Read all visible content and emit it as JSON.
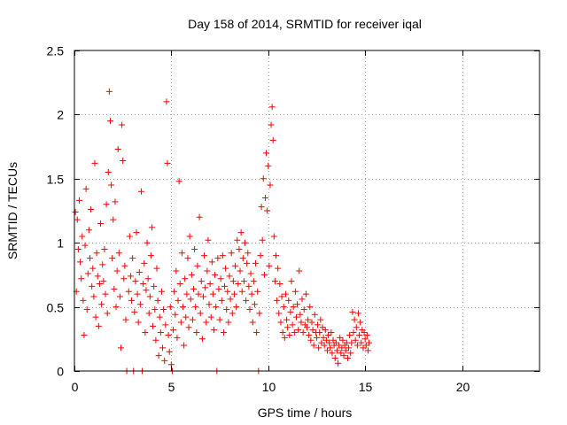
{
  "chart_data": {
    "type": "scatter",
    "title": "Day 158 of 2014, SRMTID for receiver iqal",
    "xlabel": "GPS time / hours",
    "ylabel": "SRMTID / TECUs",
    "xlim": [
      0,
      24
    ],
    "ylim": [
      0,
      2.5
    ],
    "x_ticks": [
      0,
      5,
      10,
      15,
      20
    ],
    "x_tick_labels": [
      "0",
      "5",
      "10",
      "15",
      "20"
    ],
    "y_ticks": [
      0,
      0.5,
      1,
      1.5,
      2,
      2.5
    ],
    "y_tick_labels": [
      "0",
      "0.5",
      "1",
      "1.5",
      "2",
      "2.5"
    ],
    "grid": true,
    "marker": "+",
    "series": [
      {
        "name": "SRMTID",
        "color": "#ff0000",
        "points": [
          [
            0.05,
            1.24
          ],
          [
            0.1,
            0.62
          ],
          [
            0.15,
            1.18
          ],
          [
            0.2,
            0.95
          ],
          [
            0.25,
            1.33
          ],
          [
            0.3,
            0.85
          ],
          [
            0.35,
            0.72
          ],
          [
            0.4,
            1.05
          ],
          [
            0.45,
            0.55
          ],
          [
            0.5,
            0.28
          ],
          [
            0.55,
            0.98
          ],
          [
            0.6,
            1.42
          ],
          [
            0.65,
            0.48
          ],
          [
            0.7,
            0.76
          ],
          [
            0.75,
            1.1
          ],
          [
            0.8,
            0.88
          ],
          [
            0.85,
            1.26
          ],
          [
            0.9,
            0.66
          ],
          [
            0.95,
            0.8
          ],
          [
            1.0,
            0.58
          ],
          [
            1.05,
            1.62
          ],
          [
            1.1,
            0.42
          ],
          [
            1.15,
            0.92
          ],
          [
            1.2,
            0.74
          ],
          [
            1.25,
            0.35
          ],
          [
            1.3,
            0.68
          ],
          [
            1.35,
            1.15
          ],
          [
            1.4,
            0.52
          ],
          [
            1.45,
            0.83
          ],
          [
            1.5,
            0.7
          ],
          [
            1.55,
            0.95
          ],
          [
            1.6,
            0.6
          ],
          [
            1.65,
            1.3
          ],
          [
            1.7,
            0.45
          ],
          [
            1.75,
            1.55
          ],
          [
            1.8,
            2.18
          ],
          [
            1.85,
            1.95
          ],
          [
            1.9,
            1.45
          ],
          [
            1.95,
            0.88
          ],
          [
            2.0,
            1.18
          ],
          [
            2.05,
            0.64
          ],
          [
            2.1,
            1.32
          ],
          [
            2.15,
            0.5
          ],
          [
            2.2,
            0.78
          ],
          [
            2.25,
            1.73
          ],
          [
            2.3,
            0.92
          ],
          [
            2.35,
            0.58
          ],
          [
            2.4,
            0.18
          ],
          [
            2.45,
            1.92
          ],
          [
            2.5,
            1.64
          ],
          [
            2.55,
            0.72
          ],
          [
            2.6,
            0.82
          ],
          [
            2.65,
            0.4
          ],
          [
            2.7,
            0.0
          ],
          [
            2.8,
            0.62
          ],
          [
            2.85,
            1.05
          ],
          [
            2.9,
            0.74
          ],
          [
            2.95,
            0.55
          ],
          [
            3.0,
            0.88
          ],
          [
            3.05,
            0.0
          ],
          [
            3.1,
            0.46
          ],
          [
            3.15,
            0.7
          ],
          [
            3.2,
            1.08
          ],
          [
            3.25,
            0.6
          ],
          [
            3.3,
            0.38
          ],
          [
            3.35,
            0.77
          ],
          [
            3.4,
            0.52
          ],
          [
            3.45,
            1.4
          ],
          [
            3.5,
            0.0
          ],
          [
            3.55,
            0.68
          ],
          [
            3.6,
            0.84
          ],
          [
            3.65,
            0.3
          ],
          [
            3.7,
            0.63
          ],
          [
            3.75,
            1.0
          ],
          [
            3.8,
            0.72
          ],
          [
            3.85,
            0.45
          ],
          [
            3.9,
            0.58
          ],
          [
            3.95,
            0.9
          ],
          [
            4.0,
            1.12
          ],
          [
            4.05,
            0.35
          ],
          [
            4.1,
            0.66
          ],
          [
            4.15,
            0.48
          ],
          [
            4.2,
            0.24
          ],
          [
            4.25,
            0.8
          ],
          [
            4.3,
            0.55
          ],
          [
            4.35,
            0.12
          ],
          [
            4.4,
            0.42
          ],
          [
            4.45,
            0.3
          ],
          [
            4.5,
            0.62
          ],
          [
            4.55,
            0.18
          ],
          [
            4.6,
            0.48
          ],
          [
            4.65,
            0.08
          ],
          [
            4.7,
            0.36
          ],
          [
            4.75,
            2.1
          ],
          [
            4.8,
            1.62
          ],
          [
            4.85,
            0.28
          ],
          [
            4.9,
            0.15
          ],
          [
            4.95,
            0.5
          ],
          [
            5.0,
            0.05
          ],
          [
            5.05,
            0.0
          ],
          [
            5.1,
            0.32
          ],
          [
            5.15,
            0.62
          ],
          [
            5.2,
            0.44
          ],
          [
            5.25,
            0.78
          ],
          [
            5.3,
            0.26
          ],
          [
            5.35,
            0.55
          ],
          [
            5.4,
            1.48
          ],
          [
            5.45,
            0.68
          ],
          [
            5.5,
            0.38
          ],
          [
            5.55,
            0.92
          ],
          [
            5.6,
            0.5
          ],
          [
            5.65,
            0.2
          ],
          [
            5.7,
            0.72
          ],
          [
            5.75,
            0.42
          ],
          [
            5.8,
            0.6
          ],
          [
            5.85,
            0.88
          ],
          [
            5.9,
            0.34
          ],
          [
            5.95,
            1.05
          ],
          [
            6.0,
            0.56
          ],
          [
            6.05,
            0.75
          ],
          [
            6.1,
            0.4
          ],
          [
            6.15,
            0.64
          ],
          [
            6.2,
            0.95
          ],
          [
            6.25,
            0.5
          ],
          [
            6.3,
            0.3
          ],
          [
            6.35,
            0.82
          ],
          [
            6.4,
            0.6
          ],
          [
            6.45,
            1.2
          ],
          [
            6.5,
            0.45
          ],
          [
            6.55,
            0.7
          ],
          [
            6.6,
            0.25
          ],
          [
            6.65,
            0.58
          ],
          [
            6.7,
            0.9
          ],
          [
            6.75,
            0.65
          ],
          [
            6.8,
            0.38
          ],
          [
            6.85,
            0.78
          ],
          [
            6.9,
            1.02
          ],
          [
            6.95,
            0.52
          ],
          [
            7.0,
            0.68
          ],
          [
            7.05,
            0.42
          ],
          [
            7.1,
            0.85
          ],
          [
            7.15,
            0.6
          ],
          [
            7.2,
            0.32
          ],
          [
            7.25,
            0.75
          ],
          [
            7.3,
            0.5
          ],
          [
            7.35,
            0.0
          ],
          [
            7.4,
            0.88
          ],
          [
            7.45,
            0.64
          ],
          [
            7.5,
            0.4
          ],
          [
            7.55,
            0.72
          ],
          [
            7.6,
            0.55
          ],
          [
            7.65,
            0.9
          ],
          [
            7.7,
            0.3
          ],
          [
            7.75,
            0.66
          ],
          [
            7.8,
            0.8
          ],
          [
            7.85,
            0.48
          ],
          [
            7.9,
            0.62
          ],
          [
            7.95,
            0.38
          ],
          [
            8.0,
            0.74
          ],
          [
            8.05,
            0.56
          ],
          [
            8.1,
            0.92
          ],
          [
            8.15,
            0.45
          ],
          [
            8.2,
            0.7
          ],
          [
            8.25,
            0.6
          ],
          [
            8.3,
            0.82
          ],
          [
            8.35,
            0.5
          ],
          [
            8.4,
            1.02
          ],
          [
            8.45,
            0.68
          ],
          [
            8.5,
            0.95
          ],
          [
            8.55,
            0.78
          ],
          [
            8.6,
            1.08
          ],
          [
            8.65,
            0.62
          ],
          [
            8.7,
            0.88
          ],
          [
            8.75,
            0.7
          ],
          [
            8.8,
            1.0
          ],
          [
            8.85,
            0.55
          ],
          [
            8.9,
            0.84
          ],
          [
            8.95,
            0.92
          ],
          [
            9.0,
            0.66
          ],
          [
            9.05,
            0.48
          ],
          [
            9.1,
            0.76
          ],
          [
            9.15,
            0.6
          ],
          [
            9.2,
            0.38
          ],
          [
            9.25,
            0.7
          ],
          [
            9.3,
            0.52
          ],
          [
            9.35,
            0.84
          ],
          [
            9.4,
            0.3
          ],
          [
            9.45,
            0.62
          ],
          [
            9.5,
            0.0
          ],
          [
            9.55,
            0.45
          ],
          [
            9.6,
            0.9
          ],
          [
            9.65,
            1.28
          ],
          [
            9.7,
            1.02
          ],
          [
            9.75,
            1.5
          ],
          [
            9.8,
            0.75
          ],
          [
            9.85,
            1.35
          ],
          [
            9.9,
            1.7
          ],
          [
            9.95,
            1.25
          ],
          [
            10.0,
            1.6
          ],
          [
            10.05,
            0.82
          ],
          [
            10.1,
            1.45
          ],
          [
            10.15,
            1.92
          ],
          [
            10.2,
            2.06
          ],
          [
            10.25,
            1.8
          ],
          [
            10.3,
            1.05
          ],
          [
            10.35,
            0.7
          ],
          [
            10.4,
            0.9
          ],
          [
            10.45,
            0.55
          ],
          [
            10.5,
            0.8
          ],
          [
            10.55,
            0.45
          ],
          [
            10.6,
            0.68
          ],
          [
            10.65,
            0.38
          ],
          [
            10.7,
            0.58
          ],
          [
            10.75,
            0.3
          ],
          [
            10.8,
            0.5
          ],
          [
            10.85,
            0.26
          ],
          [
            10.9,
            0.6
          ],
          [
            10.95,
            0.4
          ],
          [
            11.0,
            0.34
          ],
          [
            11.05,
            0.55
          ],
          [
            11.1,
            0.28
          ],
          [
            11.15,
            0.46
          ],
          [
            11.2,
            0.7
          ],
          [
            11.25,
            0.36
          ],
          [
            11.3,
            0.5
          ],
          [
            11.35,
            0.3
          ],
          [
            11.4,
            0.62
          ],
          [
            11.45,
            0.42
          ],
          [
            11.5,
            0.52
          ],
          [
            11.55,
            0.32
          ],
          [
            11.6,
            0.78
          ],
          [
            11.65,
            0.44
          ],
          [
            11.7,
            0.38
          ],
          [
            11.75,
            0.56
          ],
          [
            11.8,
            0.3
          ],
          [
            11.85,
            0.48
          ],
          [
            11.9,
            0.36
          ],
          [
            11.95,
            0.6
          ],
          [
            12.0,
            0.34
          ],
          [
            12.05,
            0.4
          ],
          [
            12.1,
            0.28
          ],
          [
            12.15,
            0.5
          ],
          [
            12.2,
            0.24
          ],
          [
            12.25,
            0.38
          ],
          [
            12.3,
            0.32
          ],
          [
            12.35,
            0.2
          ],
          [
            12.4,
            0.44
          ],
          [
            12.45,
            0.3
          ],
          [
            12.5,
            0.26
          ],
          [
            12.55,
            0.36
          ],
          [
            12.6,
            0.18
          ],
          [
            12.65,
            0.3
          ],
          [
            12.7,
            0.4
          ],
          [
            12.75,
            0.22
          ],
          [
            12.8,
            0.34
          ],
          [
            12.85,
            0.26
          ],
          [
            12.9,
            0.2
          ],
          [
            12.95,
            0.32
          ],
          [
            13.0,
            0.24
          ],
          [
            13.05,
            0.16
          ],
          [
            13.1,
            0.28
          ],
          [
            13.15,
            0.22
          ],
          [
            13.2,
            0.18
          ],
          [
            13.25,
            0.3
          ],
          [
            13.3,
            0.14
          ],
          [
            13.35,
            0.24
          ],
          [
            13.4,
            0.2
          ],
          [
            13.45,
            0.1
          ],
          [
            13.5,
            0.22
          ],
          [
            13.55,
            0.16
          ],
          [
            13.6,
            0.06
          ],
          [
            13.65,
            0.2
          ],
          [
            13.7,
            0.26
          ],
          [
            13.75,
            0.14
          ],
          [
            13.8,
            0.18
          ],
          [
            13.85,
            0.24
          ],
          [
            13.9,
            0.12
          ],
          [
            13.95,
            0.2
          ],
          [
            14.0,
            0.16
          ],
          [
            14.05,
            0.22
          ],
          [
            14.1,
            0.1
          ],
          [
            14.15,
            0.18
          ],
          [
            14.2,
            0.28
          ],
          [
            14.25,
            0.14
          ],
          [
            14.3,
            0.22
          ],
          [
            14.35,
            0.46
          ],
          [
            14.4,
            0.3
          ],
          [
            14.45,
            0.4
          ],
          [
            14.5,
            0.24
          ],
          [
            14.55,
            0.34
          ],
          [
            14.6,
            0.2
          ],
          [
            14.65,
            0.45
          ],
          [
            14.7,
            0.28
          ],
          [
            14.75,
            0.38
          ],
          [
            14.8,
            0.22
          ],
          [
            14.85,
            0.32
          ],
          [
            14.9,
            0.18
          ],
          [
            14.95,
            0.3
          ],
          [
            15.0,
            0.25
          ],
          [
            15.05,
            0.2
          ],
          [
            15.1,
            0.28
          ],
          [
            15.15,
            0.16
          ],
          [
            15.2,
            0.22
          ]
        ]
      }
    ]
  }
}
